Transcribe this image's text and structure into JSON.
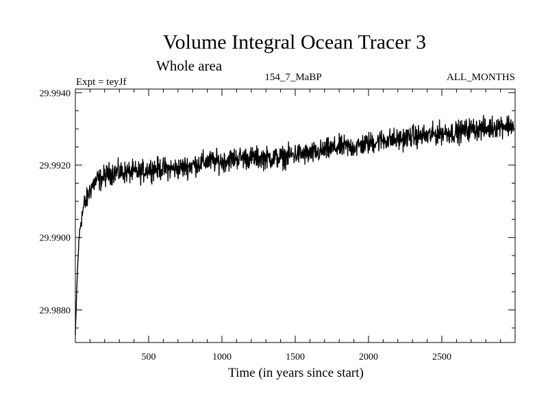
{
  "chart_data": {
    "type": "line",
    "title": "Volume Integral Ocean Tracer 3",
    "subtitle": "Whole area",
    "annotations": {
      "experiment": "Expt = teyJf",
      "period": "154_7_MaBP",
      "months": "ALL_MONTHS"
    },
    "xlabel": "Time (in years since start)",
    "ylabel": "",
    "xlim": [
      0,
      3000
    ],
    "ylim": [
      29.9871,
      29.9941
    ],
    "x_ticks": [
      500,
      1000,
      1500,
      2000,
      2500
    ],
    "x_tick_labels": [
      "500",
      "1000",
      "1500",
      "2000",
      "2500"
    ],
    "y_ticks": [
      29.988,
      29.99,
      29.992,
      29.994
    ],
    "y_tick_labels": [
      "29.9880",
      "29.9900",
      "29.9920",
      "29.9940"
    ],
    "grid": false,
    "series": [
      {
        "color": "#000000",
        "x": [
          0,
          10,
          20,
          30,
          40,
          50,
          60,
          75,
          90,
          110,
          130,
          150,
          175,
          200,
          250,
          300,
          350,
          400,
          450,
          500,
          600,
          700,
          800,
          900,
          1000,
          1100,
          1200,
          1300,
          1400,
          1500,
          1600,
          1700,
          1800,
          1900,
          2000,
          2100,
          2200,
          2300,
          2400,
          2500,
          2600,
          2700,
          2800,
          2900,
          2990
        ],
        "y": [
          29.9873,
          29.9886,
          29.9896,
          29.9902,
          29.9905,
          29.9907,
          29.9909,
          29.991,
          29.9912,
          29.9914,
          29.9915,
          29.9916,
          29.9916,
          29.9917,
          29.9918,
          29.9918,
          29.9918,
          29.9918,
          29.9918,
          29.9919,
          29.9919,
          29.9919,
          29.992,
          29.9921,
          29.9921,
          29.9922,
          29.9922,
          29.9922,
          29.9922,
          29.9923,
          29.9923,
          29.9924,
          29.9925,
          29.9925,
          29.9926,
          29.9927,
          29.9927,
          29.9928,
          29.9928,
          29.9929,
          29.9929,
          29.993,
          29.993,
          29.9931,
          29.9931
        ],
        "noise_amplitude": 0.00045
      }
    ]
  }
}
